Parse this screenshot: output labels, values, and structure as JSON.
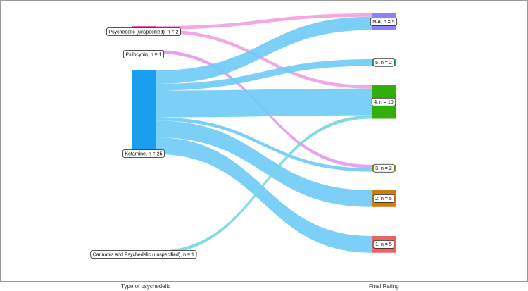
{
  "diagram": {
    "axis_labels": {
      "left": "Type of psychedelic",
      "right": "Final Rating"
    },
    "sources": [
      {
        "id": "psy",
        "label": "Psychedelic (unspecified),  n = 2",
        "color": "#e05fb3",
        "n": 2
      },
      {
        "id": "psi",
        "label": "Psilocybin,  n = 1",
        "color": "#e597ea",
        "n": 1
      },
      {
        "id": "ket",
        "label": "Ketamine,  n = 25",
        "color": "#1a9ff0",
        "n": 25
      },
      {
        "id": "can",
        "label": "Cannabis and Psychedelic (unspecified),  n = 1",
        "color": "#76d6e0",
        "n": 1
      }
    ],
    "targets": [
      {
        "id": "na",
        "label": "N/A,  n = 5",
        "color": "#8b81f8",
        "n": 5
      },
      {
        "id": "r5",
        "label": "5,  n = 2",
        "color": "#1fae4e",
        "n": 2
      },
      {
        "id": "r4",
        "label": "4,  n = 10",
        "color": "#34ae0a",
        "n": 10
      },
      {
        "id": "r3",
        "label": "3,  n = 2",
        "color": "#9a9a00",
        "n": 2
      },
      {
        "id": "r2",
        "label": "2,  n = 5",
        "color": "#cf7d0f",
        "n": 5
      },
      {
        "id": "r1",
        "label": "1,  n = 5",
        "color": "#f06262",
        "n": 5
      }
    ],
    "flows": [
      {
        "source": "psy",
        "target": "na",
        "n": 1,
        "color": "#f39ee0"
      },
      {
        "source": "psy",
        "target": "r4",
        "n": 1,
        "color": "#f39ee0"
      },
      {
        "source": "psi",
        "target": "r3",
        "n": 1,
        "color": "#e597ea"
      },
      {
        "source": "ket",
        "target": "na",
        "n": 4,
        "color": "#6ecbf7"
      },
      {
        "source": "ket",
        "target": "r5",
        "n": 2,
        "color": "#6ecbf7"
      },
      {
        "source": "ket",
        "target": "r4",
        "n": 8,
        "color": "#6ecbf7"
      },
      {
        "source": "ket",
        "target": "r3",
        "n": 1,
        "color": "#6ecbf7"
      },
      {
        "source": "ket",
        "target": "r2",
        "n": 5,
        "color": "#6ecbf7"
      },
      {
        "source": "ket",
        "target": "r1",
        "n": 5,
        "color": "#6ecbf7"
      },
      {
        "source": "can",
        "target": "r4",
        "n": 1,
        "color": "#76d6e0"
      }
    ]
  }
}
